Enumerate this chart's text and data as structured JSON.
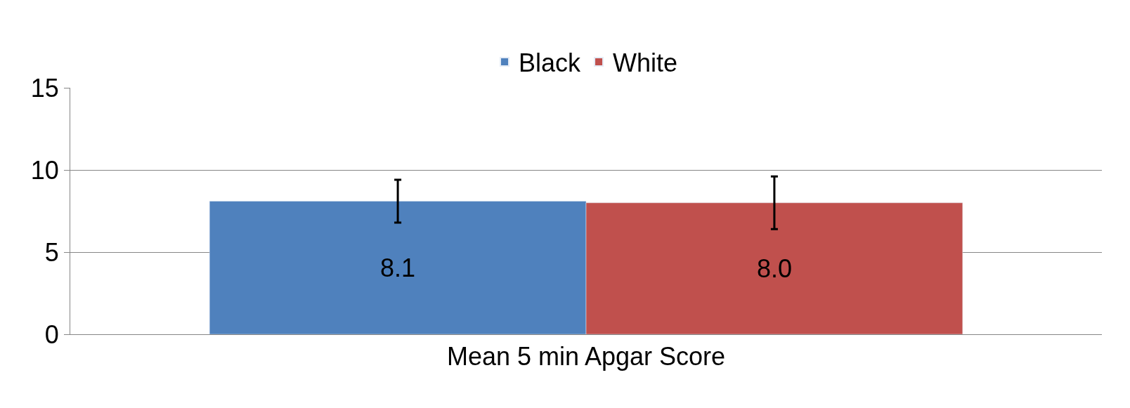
{
  "chart_data": {
    "type": "bar",
    "categories": [
      "Mean 5 min Apgar Score"
    ],
    "series": [
      {
        "name": "Black",
        "color": "#4f81bd",
        "values": [
          8.1
        ],
        "errors": [
          1.3
        ],
        "value_labels": [
          "8.1"
        ]
      },
      {
        "name": "White",
        "color": "#c0504d",
        "values": [
          8.0
        ],
        "errors": [
          1.6
        ],
        "value_labels": [
          "8.0"
        ]
      }
    ],
    "ylim": [
      0,
      15
    ],
    "yticks": [
      0,
      5,
      10,
      15
    ],
    "grid": "y",
    "legend": "top"
  }
}
